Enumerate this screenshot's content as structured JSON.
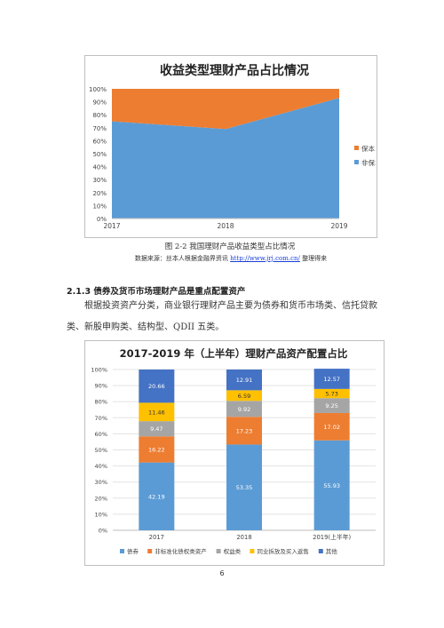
{
  "figure1": {
    "caption": "图 2-2 我国理财产品收益类型占比情况",
    "source_prefix": "数据来源：丝本人根据金融界资讯",
    "source_link": "http://www.jrj.com.cn/",
    "source_suffix": "整理得来"
  },
  "section": {
    "heading": "2.1.3 债券及货币市场理财产品是重点配置资产",
    "para_line1": "根据投资资产分类，商业银行理财产品主要为债券和货币市场类、信托贷款",
    "para_line2": "类、新股申购类、结构型、QDII 五类。"
  },
  "page_number": "6",
  "chart_data": [
    {
      "type": "area",
      "title": "收益类型理财产品占比情况",
      "categories": [
        "2017",
        "2018",
        "2019"
      ],
      "y_tick_labels": [
        "0%",
        "10%",
        "20%",
        "30%",
        "40%",
        "50%",
        "60%",
        "70%",
        "80%",
        "90%",
        "100%"
      ],
      "ylim": [
        0,
        100
      ],
      "stacked_percent": true,
      "series": [
        {
          "name": "非保本",
          "values": [
            75,
            69,
            93
          ],
          "color": "#5b9bd5"
        },
        {
          "name": "保本",
          "values": [
            25,
            31,
            7
          ],
          "color": "#ed7d31"
        }
      ],
      "legend_order": [
        "保本",
        "非保本"
      ],
      "legend_position": "right",
      "grid": false
    },
    {
      "type": "bar",
      "stacked_percent": true,
      "title": "2017-2019 年（上半年）理财产品资产配置占比",
      "categories": [
        "2017",
        "2018",
        "2019(上半年)"
      ],
      "y_tick_labels": [
        "0%",
        "10%",
        "20%",
        "30%",
        "40%",
        "50%",
        "60%",
        "70%",
        "80%",
        "90%",
        "100%"
      ],
      "ylim": [
        0,
        100
      ],
      "series": [
        {
          "name": "债券",
          "values": [
            42.19,
            53.35,
            55.93
          ],
          "color": "#5b9bd5"
        },
        {
          "name": "非标准化债权类资产",
          "values": [
            16.22,
            17.23,
            17.02
          ],
          "color": "#ed7d31"
        },
        {
          "name": "权益类",
          "values": [
            9.47,
            9.92,
            9.25
          ],
          "color": "#a5a5a5"
        },
        {
          "name": "同业拆放及买入返售",
          "values": [
            11.46,
            6.59,
            5.73
          ],
          "color": "#ffc000"
        },
        {
          "name": "其他",
          "values": [
            20.66,
            12.91,
            12.57
          ],
          "color": "#4472c4"
        }
      ],
      "legend_position": "bottom",
      "grid": true
    }
  ]
}
